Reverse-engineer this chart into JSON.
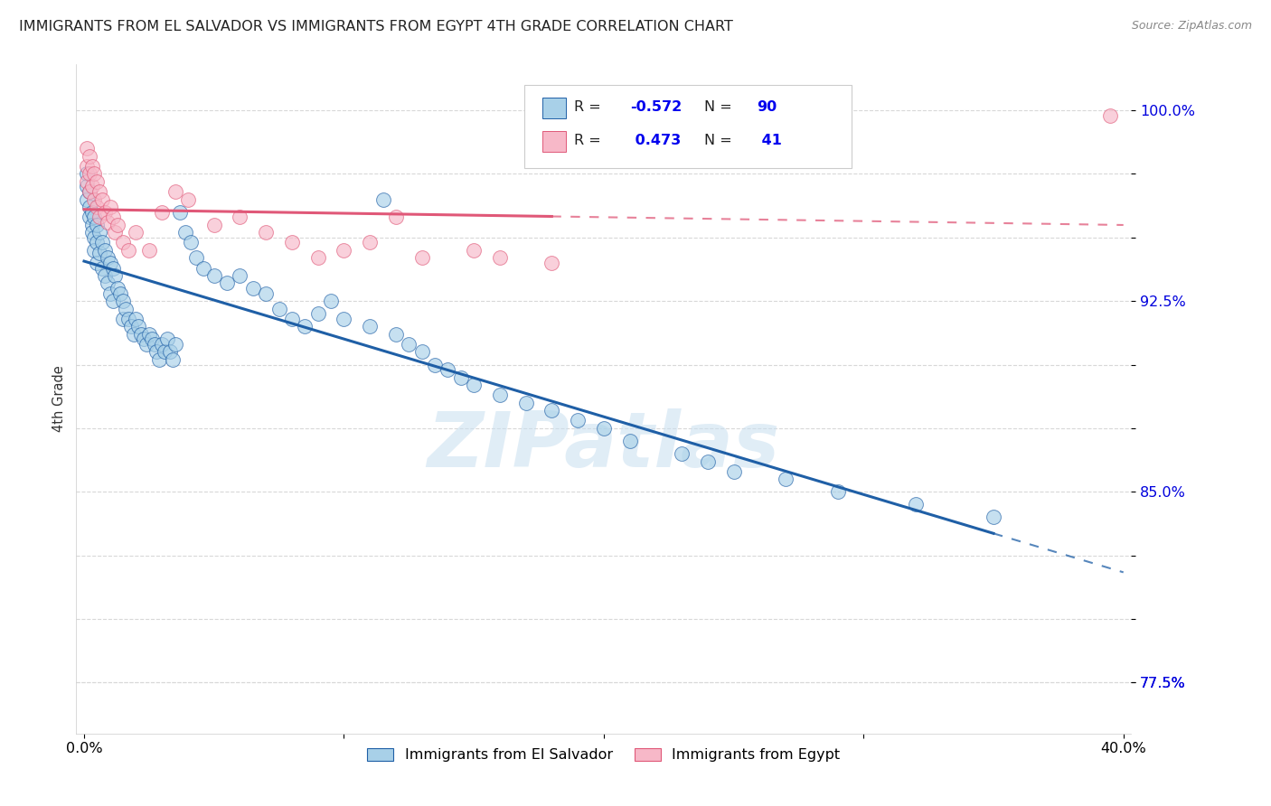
{
  "title": "IMMIGRANTS FROM EL SALVADOR VS IMMIGRANTS FROM EGYPT 4TH GRADE CORRELATION CHART",
  "source": "Source: ZipAtlas.com",
  "ylabel": "4th Grade",
  "ylim": [
    0.755,
    1.018
  ],
  "xlim": [
    -0.003,
    0.403
  ],
  "R_salvador": -0.572,
  "N_salvador": 90,
  "R_egypt": 0.473,
  "N_egypt": 41,
  "color_salvador": "#a8d0e8",
  "color_egypt": "#f7b8c8",
  "trend_color_salvador": "#1f5fa6",
  "trend_color_egypt": "#e05878",
  "legend_R_color": "#0000ee",
  "background": "#ffffff",
  "grid_color": "#d8d8d8",
  "ytick_vals": [
    0.775,
    0.8,
    0.825,
    0.85,
    0.875,
    0.9,
    0.925,
    0.95,
    0.975,
    1.0
  ],
  "ytick_labels": [
    "",
    "",
    "",
    "85.0%",
    "",
    "",
    "92.5%",
    "",
    "",
    "100.0%"
  ],
  "ytick_extra": 0.775,
  "ytick_extra_label": "77.5%",
  "sv_x": [
    0.001,
    0.001,
    0.001,
    0.002,
    0.002,
    0.002,
    0.003,
    0.003,
    0.003,
    0.004,
    0.004,
    0.004,
    0.005,
    0.005,
    0.005,
    0.006,
    0.006,
    0.007,
    0.007,
    0.008,
    0.008,
    0.009,
    0.009,
    0.01,
    0.01,
    0.011,
    0.011,
    0.012,
    0.013,
    0.014,
    0.015,
    0.015,
    0.016,
    0.017,
    0.018,
    0.019,
    0.02,
    0.021,
    0.022,
    0.023,
    0.024,
    0.025,
    0.026,
    0.027,
    0.028,
    0.029,
    0.03,
    0.031,
    0.032,
    0.033,
    0.034,
    0.035,
    0.037,
    0.039,
    0.041,
    0.043,
    0.046,
    0.05,
    0.055,
    0.06,
    0.065,
    0.07,
    0.075,
    0.08,
    0.085,
    0.09,
    0.095,
    0.1,
    0.11,
    0.115,
    0.12,
    0.125,
    0.13,
    0.135,
    0.14,
    0.145,
    0.15,
    0.16,
    0.17,
    0.18,
    0.19,
    0.2,
    0.21,
    0.23,
    0.24,
    0.25,
    0.27,
    0.29,
    0.32,
    0.35
  ],
  "sv_y": [
    0.975,
    0.97,
    0.965,
    0.968,
    0.962,
    0.958,
    0.96,
    0.955,
    0.952,
    0.958,
    0.95,
    0.945,
    0.955,
    0.948,
    0.94,
    0.952,
    0.944,
    0.948,
    0.938,
    0.945,
    0.935,
    0.942,
    0.932,
    0.94,
    0.928,
    0.938,
    0.925,
    0.935,
    0.93,
    0.928,
    0.925,
    0.918,
    0.922,
    0.918,
    0.915,
    0.912,
    0.918,
    0.915,
    0.912,
    0.91,
    0.908,
    0.912,
    0.91,
    0.908,
    0.905,
    0.902,
    0.908,
    0.905,
    0.91,
    0.905,
    0.902,
    0.908,
    0.96,
    0.952,
    0.948,
    0.942,
    0.938,
    0.935,
    0.932,
    0.935,
    0.93,
    0.928,
    0.922,
    0.918,
    0.915,
    0.92,
    0.925,
    0.918,
    0.915,
    0.965,
    0.912,
    0.908,
    0.905,
    0.9,
    0.898,
    0.895,
    0.892,
    0.888,
    0.885,
    0.882,
    0.878,
    0.875,
    0.87,
    0.865,
    0.862,
    0.858,
    0.855,
    0.85,
    0.845,
    0.84
  ],
  "eg_x": [
    0.001,
    0.001,
    0.001,
    0.002,
    0.002,
    0.002,
    0.003,
    0.003,
    0.004,
    0.004,
    0.005,
    0.005,
    0.006,
    0.006,
    0.007,
    0.008,
    0.009,
    0.01,
    0.011,
    0.012,
    0.013,
    0.015,
    0.017,
    0.02,
    0.025,
    0.03,
    0.035,
    0.04,
    0.05,
    0.06,
    0.07,
    0.08,
    0.09,
    0.1,
    0.11,
    0.12,
    0.13,
    0.15,
    0.16,
    0.18,
    0.395
  ],
  "eg_y": [
    0.985,
    0.978,
    0.972,
    0.982,
    0.975,
    0.968,
    0.978,
    0.97,
    0.975,
    0.965,
    0.972,
    0.962,
    0.968,
    0.958,
    0.965,
    0.96,
    0.956,
    0.962,
    0.958,
    0.952,
    0.955,
    0.948,
    0.945,
    0.952,
    0.945,
    0.96,
    0.968,
    0.965,
    0.955,
    0.958,
    0.952,
    0.948,
    0.942,
    0.945,
    0.948,
    0.958,
    0.942,
    0.945,
    0.942,
    0.94,
    0.998
  ]
}
